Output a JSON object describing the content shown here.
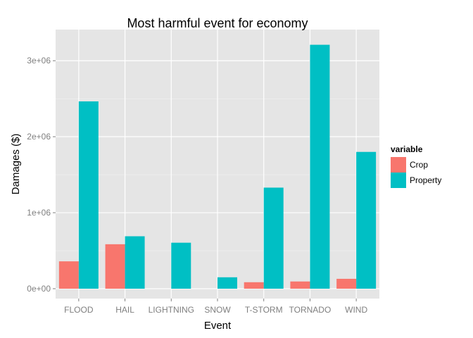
{
  "chart_data": {
    "type": "bar",
    "title": "Most harmful event for economy",
    "xlabel": "Event",
    "ylabel": "Damages ($)",
    "categories": [
      "FLOOD",
      "HAIL",
      "LIGHTNING",
      "SNOW",
      "T-STORM",
      "TORNADO",
      "WIND"
    ],
    "series": [
      {
        "name": "Crop",
        "color": "#F8766D",
        "values": [
          360000,
          585000,
          0,
          0,
          85000,
          95000,
          130000
        ]
      },
      {
        "name": "Property",
        "color": "#00BFC4",
        "values": [
          2465000,
          690000,
          605000,
          150000,
          1330000,
          3210000,
          1800000
        ]
      }
    ],
    "ylim": [
      -130000,
      3410000
    ],
    "yticks": [
      0,
      1000000,
      2000000,
      3000000
    ],
    "ytick_labels": [
      "0e+00",
      "1e+06",
      "2e+06",
      "3e+06"
    ],
    "legend": {
      "title": "variable",
      "position": "right"
    },
    "grid": true
  }
}
